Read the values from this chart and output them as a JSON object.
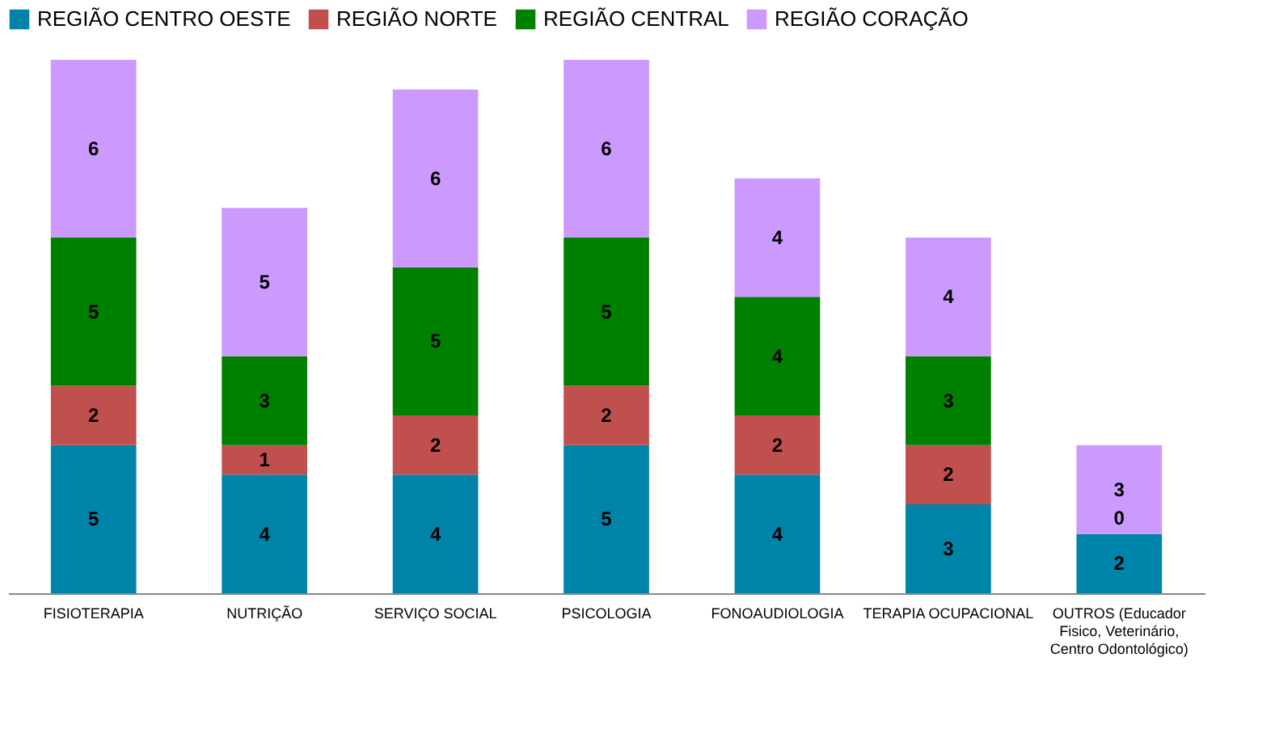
{
  "chart_data": {
    "type": "bar",
    "stacked": true,
    "legend": "top",
    "data_labels": true,
    "categories": [
      "FISIOTERAPIA",
      "NUTRIÇÃO",
      "SERVIÇO SOCIAL",
      "PSICOLOGIA",
      "FONOAUDIOLOGIA",
      "TERAPIA OCUPACIONAL",
      "OUTROS (Educador Fisico, Veterinário, Centro Odontológico)"
    ],
    "series": [
      {
        "name": "REGIÃO CENTRO OESTE",
        "color": "#0083a8",
        "values": [
          5,
          4,
          4,
          5,
          4,
          3,
          2
        ]
      },
      {
        "name": "REGIÃO NORTE",
        "color": "#c0504d",
        "values": [
          2,
          1,
          2,
          2,
          2,
          2,
          0
        ]
      },
      {
        "name": "REGIÃO CENTRAL",
        "color": "#008000",
        "values": [
          5,
          3,
          5,
          5,
          4,
          3,
          null
        ]
      },
      {
        "name": "REGIÃO CORAÇÃO",
        "color": "#cc99ff",
        "values": [
          6,
          5,
          6,
          6,
          4,
          4,
          3
        ]
      }
    ]
  }
}
